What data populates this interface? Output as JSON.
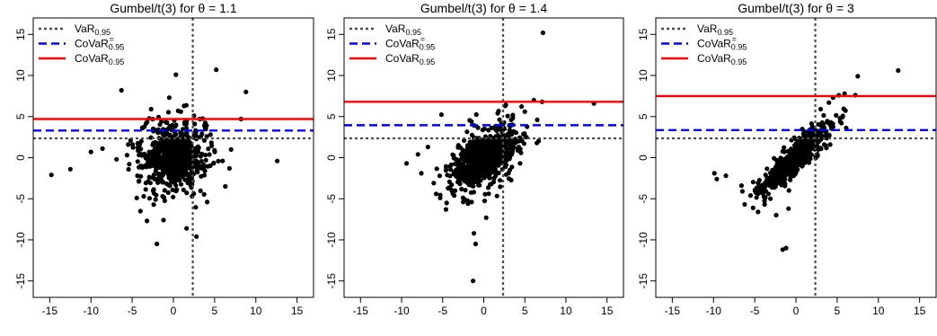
{
  "colors": {
    "var_line": "#4d4d4d",
    "covar_eq_line": "#0000ff",
    "covar_line": "#ff0000",
    "points": "#000000",
    "axes": "#000000",
    "background": "#ffffff"
  },
  "chart_data": [
    {
      "type": "scatter",
      "title": "Gumbel/t(3) for θ = 1.1",
      "xlim": [
        -17,
        17
      ],
      "ylim": [
        -17,
        17
      ],
      "xticks": [
        -15,
        -10,
        -5,
        0,
        5,
        10,
        15
      ],
      "yticks": [
        -15,
        -10,
        -5,
        0,
        5,
        10,
        15
      ],
      "xlabel": "",
      "ylabel": "",
      "grid": false,
      "legend_position": "top-left",
      "legend": [
        {
          "label": "VaR",
          "sub": "0.95",
          "sup": "",
          "style": "dotted",
          "color": "#4d4d4d"
        },
        {
          "label": "CoVaR",
          "sub": "0.95",
          "sup": "=",
          "style": "dashed",
          "color": "#0000ff"
        },
        {
          "label": "CoVaR",
          "sub": "0.95",
          "sup": "",
          "style": "solid",
          "color": "#ff0000"
        }
      ],
      "var_x": 2.35,
      "var_y": 2.35,
      "covar_eq": 3.3,
      "covar": 4.7,
      "cloud": {
        "sx": 1.2,
        "sy": 1.2,
        "rho": 0.05,
        "n": 1100,
        "core": 1.1
      },
      "outliers": [
        [
          -14.8,
          -2.1
        ],
        [
          -12.5,
          -1.4
        ],
        [
          -10.0,
          0.7
        ],
        [
          -8.6,
          1.1
        ],
        [
          -6.3,
          8.2
        ],
        [
          -5.2,
          2.1
        ],
        [
          -4.0,
          -6.5
        ],
        [
          -3.2,
          -7.7
        ],
        [
          -2.7,
          5.9
        ],
        [
          -2.0,
          -10.5
        ],
        [
          -1.2,
          -7.6
        ],
        [
          -0.5,
          7.3
        ],
        [
          0.3,
          10.1
        ],
        [
          0.9,
          5.6
        ],
        [
          1.6,
          -8.6
        ],
        [
          2.8,
          -9.6
        ],
        [
          3.2,
          4.7
        ],
        [
          4.1,
          -5.4
        ],
        [
          5.2,
          10.7
        ],
        [
          6.3,
          -3.5
        ],
        [
          6.8,
          -1.3
        ],
        [
          8.2,
          4.7
        ],
        [
          8.8,
          8.0
        ],
        [
          12.6,
          -0.4
        ],
        [
          1.3,
          6.3
        ],
        [
          -3.6,
          -4.7
        ],
        [
          4.5,
          2.8
        ],
        [
          -6.9,
          -0.2
        ],
        [
          7.0,
          1.0
        ]
      ]
    },
    {
      "type": "scatter",
      "title": "Gumbel/t(3) for θ = 1.4",
      "xlim": [
        -17,
        17
      ],
      "ylim": [
        -17,
        17
      ],
      "xticks": [
        -15,
        -10,
        -5,
        0,
        5,
        10,
        15
      ],
      "yticks": [
        -15,
        -10,
        -5,
        0,
        5,
        10,
        15
      ],
      "xlabel": "",
      "ylabel": "",
      "grid": false,
      "legend_position": "top-left",
      "legend": [
        {
          "label": "VaR",
          "sub": "0.95",
          "sup": "",
          "style": "dotted",
          "color": "#4d4d4d"
        },
        {
          "label": "CoVaR",
          "sub": "0.95",
          "sup": "=",
          "style": "dashed",
          "color": "#0000ff"
        },
        {
          "label": "CoVaR",
          "sub": "0.95",
          "sup": "",
          "style": "solid",
          "color": "#ff0000"
        }
      ],
      "var_x": 2.35,
      "var_y": 2.35,
      "covar_eq": 3.95,
      "covar": 6.8,
      "cloud": {
        "sx": 1.3,
        "sy": 1.25,
        "rho": 0.5,
        "n": 1150,
        "core": 1.0
      },
      "outliers": [
        [
          -9.4,
          -0.7
        ],
        [
          -8.0,
          0.4
        ],
        [
          -7.6,
          -1.9
        ],
        [
          -6.8,
          1.3
        ],
        [
          -5.3,
          -4.9
        ],
        [
          -4.6,
          -6.3
        ],
        [
          -3.9,
          -3.3
        ],
        [
          -2.3,
          -5.1
        ],
        [
          -1.2,
          -9.2
        ],
        [
          -1.0,
          -10.5
        ],
        [
          -1.3,
          -15.0
        ],
        [
          0.3,
          -7.3
        ],
        [
          1.7,
          5.4
        ],
        [
          2.6,
          6.3
        ],
        [
          3.5,
          4.0
        ],
        [
          4.2,
          2.1
        ],
        [
          5.0,
          5.6
        ],
        [
          6.1,
          7.0
        ],
        [
          6.5,
          4.6
        ],
        [
          7.2,
          15.2
        ],
        [
          7.1,
          6.8
        ],
        [
          13.4,
          6.6
        ],
        [
          -1.5,
          4.4
        ],
        [
          0.6,
          -4.4
        ]
      ]
    },
    {
      "type": "scatter",
      "title": "Gumbel/t(3) for θ = 3",
      "xlim": [
        -17,
        17
      ],
      "ylim": [
        -17,
        17
      ],
      "xticks": [
        -15,
        -10,
        -5,
        0,
        5,
        10,
        15
      ],
      "yticks": [
        -15,
        -10,
        -5,
        0,
        5,
        10,
        15
      ],
      "xlabel": "",
      "ylabel": "",
      "grid": false,
      "legend_position": "top-left",
      "legend": [
        {
          "label": "VaR",
          "sub": "0.95",
          "sup": "",
          "style": "dotted",
          "color": "#4d4d4d"
        },
        {
          "label": "CoVaR",
          "sub": "0.95",
          "sup": "=",
          "style": "dashed",
          "color": "#0000ff"
        },
        {
          "label": "CoVaR",
          "sub": "0.95",
          "sup": "",
          "style": "solid",
          "color": "#ff0000"
        }
      ],
      "var_x": 2.35,
      "var_y": 2.35,
      "covar_eq": 3.35,
      "covar": 7.5,
      "cloud": {
        "sx": 1.35,
        "sy": 1.35,
        "rho": 0.9,
        "n": 1100,
        "core": 1.0
      },
      "outliers": [
        [
          -9.9,
          -1.9
        ],
        [
          -9.6,
          -2.6
        ],
        [
          -8.5,
          -2.2
        ],
        [
          -6.6,
          -3.4
        ],
        [
          -6.5,
          -4.1
        ],
        [
          -5.5,
          -4.6
        ],
        [
          -5.2,
          -6.1
        ],
        [
          -4.6,
          -6.6
        ],
        [
          -3.8,
          -5.7
        ],
        [
          -3.1,
          -5.0
        ],
        [
          -2.4,
          -7.0
        ],
        [
          -1.6,
          -11.2
        ],
        [
          -1.2,
          -11.0
        ],
        [
          -0.9,
          -6.2
        ],
        [
          3.0,
          5.9
        ],
        [
          4.0,
          6.7
        ],
        [
          4.5,
          7.3
        ],
        [
          5.2,
          7.6
        ],
        [
          5.9,
          7.8
        ],
        [
          7.2,
          7.6
        ],
        [
          7.5,
          9.9
        ],
        [
          12.4,
          10.6
        ]
      ]
    }
  ]
}
